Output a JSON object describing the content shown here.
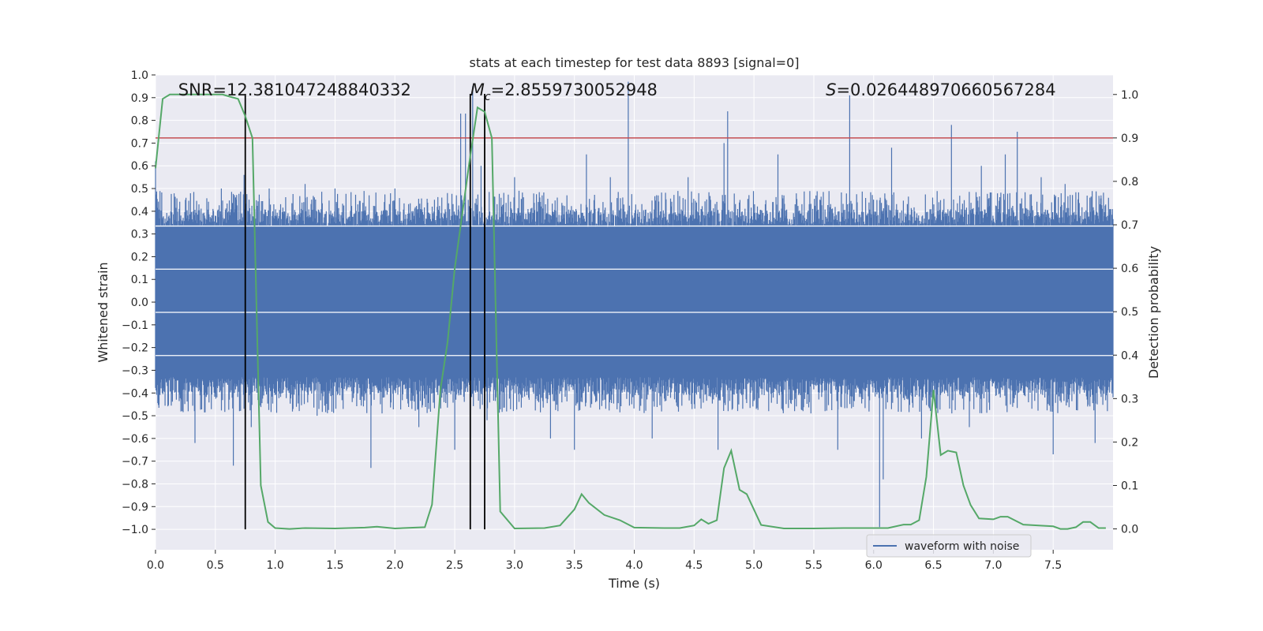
{
  "chart_data": {
    "type": "line",
    "title": "stats at each timestep for test data 8893 [signal=0]",
    "xlabel": "Time (s)",
    "ylabel": "Whitened strain",
    "y2label": "Detection probability",
    "xlim": [
      0,
      8
    ],
    "ylim": [
      -1.09,
      1.0
    ],
    "y2lim": [
      -0.048,
      1.045
    ],
    "xticks": [
      "0.0",
      "0.5",
      "1.0",
      "1.5",
      "2.0",
      "2.5",
      "3.0",
      "3.5",
      "4.0",
      "4.5",
      "5.0",
      "5.5",
      "6.0",
      "6.5",
      "7.0",
      "7.5"
    ],
    "yticks": [
      "1.0",
      "0.9",
      "0.8",
      "0.7",
      "0.6",
      "0.5",
      "0.4",
      "0.3",
      "0.2",
      "0.1",
      "0.0",
      "-0.1",
      "-0.2",
      "-0.3",
      "-0.4",
      "-0.5",
      "-0.6",
      "-0.7",
      "-0.8",
      "-0.9",
      "-1.0"
    ],
    "y2ticks": [
      "1.0",
      "0.9",
      "0.8",
      "0.7",
      "0.6",
      "0.5",
      "0.4",
      "0.3",
      "0.2",
      "0.1",
      "0.0"
    ],
    "grid": true,
    "legend": {
      "placement": "bottom-right",
      "entries": [
        "waveform with noise"
      ]
    },
    "colors": {
      "waveform": "#4c72b0",
      "probability": "#55a868",
      "threshold": "#c44e52",
      "markers": "#000000",
      "background": "#eaeaf2",
      "grid": "#ffffff"
    },
    "annotations": {
      "snr": "SNR=12.381047248840332",
      "mc_symbol": "M",
      "mc_subscript": "c",
      "mc_value": "=2.8559730052948",
      "s_symbol": "S",
      "s_value": "=0.026448970660567284"
    },
    "threshold_probability": 0.9,
    "vertical_markers_time": [
      0.75,
      2.63,
      2.75
    ],
    "white_horizontal_lines_strain": [
      0.335,
      0.145,
      -0.045,
      -0.235
    ],
    "waveform_band": [
      -0.33,
      0.33
    ],
    "waveform_spikes": [
      [
        0.0,
        0.62
      ],
      [
        0.03,
        -0.45
      ],
      [
        0.25,
        0.45
      ],
      [
        0.33,
        -0.62
      ],
      [
        0.55,
        0.5
      ],
      [
        0.65,
        -0.72
      ],
      [
        0.74,
        0.56
      ],
      [
        0.8,
        -0.55
      ],
      [
        0.95,
        0.5
      ],
      [
        1.25,
        0.52
      ],
      [
        1.35,
        -0.5
      ],
      [
        1.5,
        0.5
      ],
      [
        1.8,
        -0.73
      ],
      [
        2.0,
        0.5
      ],
      [
        2.2,
        -0.55
      ],
      [
        2.5,
        -0.65
      ],
      [
        2.55,
        0.83
      ],
      [
        2.59,
        0.83
      ],
      [
        2.63,
        -0.63
      ],
      [
        2.65,
        0.95
      ],
      [
        2.72,
        0.6
      ],
      [
        2.77,
        -0.52
      ],
      [
        3.0,
        0.55
      ],
      [
        3.3,
        -0.6
      ],
      [
        3.5,
        -0.65
      ],
      [
        3.6,
        0.65
      ],
      [
        3.8,
        0.55
      ],
      [
        3.95,
        0.97
      ],
      [
        4.15,
        -0.6
      ],
      [
        4.45,
        0.55
      ],
      [
        4.7,
        -0.65
      ],
      [
        4.75,
        0.7
      ],
      [
        4.78,
        0.84
      ],
      [
        5.2,
        0.65
      ],
      [
        5.7,
        -0.65
      ],
      [
        5.8,
        0.91
      ],
      [
        6.05,
        -0.99
      ],
      [
        6.08,
        -0.78
      ],
      [
        6.15,
        0.68
      ],
      [
        6.4,
        -0.6
      ],
      [
        6.65,
        0.78
      ],
      [
        6.8,
        -0.55
      ],
      [
        6.9,
        0.6
      ],
      [
        7.1,
        0.65
      ],
      [
        7.2,
        0.75
      ],
      [
        7.4,
        0.55
      ],
      [
        7.5,
        -0.67
      ],
      [
        7.6,
        0.52
      ],
      [
        7.85,
        -0.62
      ],
      [
        7.9,
        0.47
      ]
    ],
    "detection_probability": {
      "x": [
        0.0,
        0.06,
        0.12,
        0.19,
        0.25,
        0.31,
        0.37,
        0.44,
        0.5,
        0.56,
        0.62,
        0.69,
        0.75,
        0.81,
        0.88,
        0.94,
        1.0,
        1.12,
        1.25,
        1.5,
        1.75,
        1.85,
        2.0,
        2.25,
        2.31,
        2.38,
        2.44,
        2.5,
        2.56,
        2.62,
        2.69,
        2.75,
        2.81,
        2.88,
        3.0,
        3.25,
        3.38,
        3.5,
        3.56,
        3.62,
        3.75,
        3.88,
        4.0,
        4.25,
        4.38,
        4.5,
        4.56,
        4.62,
        4.69,
        4.75,
        4.81,
        4.88,
        4.94,
        5.06,
        5.25,
        5.5,
        5.75,
        6.0,
        6.12,
        6.25,
        6.31,
        6.38,
        6.44,
        6.5,
        6.56,
        6.62,
        6.69,
        6.75,
        6.81,
        6.88,
        7.0,
        7.06,
        7.12,
        7.25,
        7.38,
        7.5,
        7.56,
        7.62,
        7.69,
        7.75,
        7.81,
        7.88,
        7.94
      ],
      "y": [
        0.83,
        0.99,
        1.0,
        1.0,
        1.0,
        1.0,
        1.0,
        1.0,
        1.0,
        1.0,
        0.995,
        0.99,
        0.95,
        0.9,
        0.1,
        0.016,
        0.002,
        0.0,
        0.002,
        0.001,
        0.003,
        0.005,
        0.001,
        0.004,
        0.056,
        0.32,
        0.43,
        0.6,
        0.72,
        0.84,
        0.97,
        0.96,
        0.9,
        0.04,
        0.001,
        0.002,
        0.008,
        0.045,
        0.08,
        0.06,
        0.032,
        0.02,
        0.003,
        0.002,
        0.002,
        0.008,
        0.022,
        0.012,
        0.02,
        0.14,
        0.18,
        0.09,
        0.08,
        0.009,
        0.001,
        0.001,
        0.002,
        0.002,
        0.002,
        0.01,
        0.01,
        0.02,
        0.12,
        0.32,
        0.17,
        0.18,
        0.176,
        0.1,
        0.055,
        0.024,
        0.022,
        0.028,
        0.028,
        0.01,
        0.008,
        0.006,
        0.0,
        0.0,
        0.004,
        0.016,
        0.016,
        0.002,
        0.002
      ]
    }
  }
}
